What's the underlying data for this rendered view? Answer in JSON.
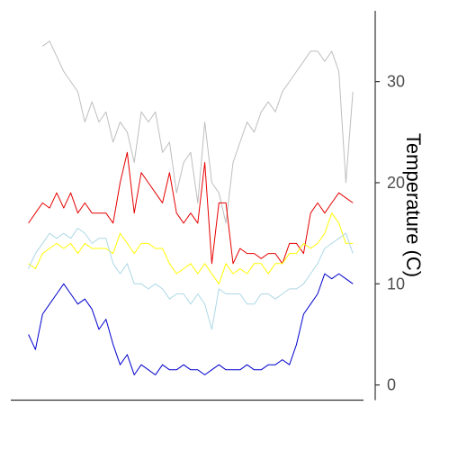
{
  "chart_data": {
    "type": "line",
    "title": "",
    "xlabel": "",
    "ylabel": "Temperature (C)",
    "ylim": [
      -1.5,
      37
    ],
    "xlim": [
      0,
      1
    ],
    "y_axis_position": "right",
    "yticks": [
      0,
      10,
      20,
      30
    ],
    "grid": false,
    "legend": "none",
    "series": [
      {
        "color": "#bebebe",
        "x": [
          0.09,
          0.11,
          0.13,
          0.15,
          0.17,
          0.19,
          0.21,
          0.23,
          0.25,
          0.27,
          0.29,
          0.31,
          0.33,
          0.35,
          0.37,
          0.39,
          0.41,
          0.43,
          0.45,
          0.47,
          0.49,
          0.51,
          0.53,
          0.55,
          0.57,
          0.59,
          0.61,
          0.63,
          0.65,
          0.67,
          0.69,
          0.71,
          0.73,
          0.75,
          0.77,
          0.79,
          0.81,
          0.83,
          0.85,
          0.87,
          0.89,
          0.91,
          0.93,
          0.95,
          0.97
        ],
        "values": [
          33.5,
          34,
          32.5,
          31,
          30,
          29,
          26,
          28,
          26,
          27,
          24,
          26,
          25,
          22,
          27,
          26,
          27,
          23,
          24,
          19,
          22,
          23,
          18,
          26,
          20,
          19,
          16,
          22,
          24,
          26,
          25,
          27,
          28,
          27,
          29,
          30,
          31,
          32,
          33,
          33,
          32,
          33,
          31,
          20,
          29
        ]
      },
      {
        "color": "#e60000",
        "x": [
          0.05,
          0.07,
          0.09,
          0.11,
          0.13,
          0.15,
          0.17,
          0.19,
          0.21,
          0.23,
          0.25,
          0.27,
          0.29,
          0.31,
          0.33,
          0.35,
          0.37,
          0.39,
          0.41,
          0.43,
          0.45,
          0.47,
          0.49,
          0.51,
          0.53,
          0.55,
          0.57,
          0.59,
          0.61,
          0.63,
          0.65,
          0.67,
          0.69,
          0.71,
          0.73,
          0.75,
          0.77,
          0.79,
          0.81,
          0.83,
          0.85,
          0.87,
          0.89,
          0.91,
          0.93,
          0.95,
          0.97
        ],
        "values": [
          16,
          17,
          18,
          17.5,
          19,
          17.5,
          19,
          17,
          18,
          17,
          17,
          17,
          16,
          20,
          23,
          17,
          21,
          20,
          19,
          18,
          21,
          17,
          16,
          17,
          16,
          22,
          12,
          18,
          18,
          12,
          13.5,
          13,
          13,
          12.5,
          13,
          13,
          12,
          14,
          14,
          13,
          17,
          18,
          17,
          18,
          19,
          18.5,
          18
        ]
      },
      {
        "color": "#ffff00",
        "x": [
          0.05,
          0.07,
          0.09,
          0.11,
          0.13,
          0.15,
          0.17,
          0.19,
          0.21,
          0.23,
          0.25,
          0.27,
          0.29,
          0.31,
          0.33,
          0.35,
          0.37,
          0.39,
          0.41,
          0.43,
          0.45,
          0.47,
          0.49,
          0.51,
          0.53,
          0.55,
          0.57,
          0.59,
          0.61,
          0.63,
          0.65,
          0.67,
          0.69,
          0.71,
          0.73,
          0.75,
          0.77,
          0.79,
          0.81,
          0.83,
          0.85,
          0.87,
          0.89,
          0.91,
          0.93,
          0.95,
          0.97
        ],
        "values": [
          12,
          11.5,
          13,
          13.5,
          14,
          13.5,
          14,
          13,
          14,
          13.5,
          13.5,
          13.5,
          13,
          15,
          14,
          13,
          14,
          14,
          13.5,
          13.5,
          12,
          11,
          11.5,
          12,
          11,
          12,
          11,
          10,
          12,
          11,
          11.5,
          11,
          12,
          12,
          11,
          12,
          12,
          13,
          13,
          14,
          13.5,
          14,
          15,
          17,
          16,
          14,
          14
        ]
      },
      {
        "color": "#add8e6",
        "x": [
          0.05,
          0.07,
          0.09,
          0.11,
          0.13,
          0.15,
          0.17,
          0.19,
          0.21,
          0.23,
          0.25,
          0.27,
          0.29,
          0.31,
          0.33,
          0.35,
          0.37,
          0.39,
          0.41,
          0.43,
          0.45,
          0.47,
          0.49,
          0.51,
          0.53,
          0.55,
          0.57,
          0.59,
          0.61,
          0.63,
          0.65,
          0.67,
          0.69,
          0.71,
          0.73,
          0.75,
          0.77,
          0.79,
          0.81,
          0.83,
          0.85,
          0.87,
          0.89,
          0.91,
          0.93,
          0.95,
          0.97
        ],
        "values": [
          11.5,
          13,
          14,
          15,
          14.5,
          15,
          14.5,
          15.5,
          15,
          14,
          14.5,
          14.5,
          12,
          11,
          12,
          10,
          10,
          9.5,
          10,
          9.5,
          8.5,
          9,
          9,
          8,
          9,
          8,
          5.5,
          9.5,
          9,
          9,
          9,
          8,
          8,
          9,
          9,
          8.5,
          9,
          9.5,
          9.5,
          10,
          11,
          12,
          13.5,
          14,
          14.5,
          15,
          13
        ]
      },
      {
        "color": "#0000cd",
        "x": [
          0.05,
          0.07,
          0.09,
          0.11,
          0.13,
          0.15,
          0.17,
          0.19,
          0.21,
          0.23,
          0.25,
          0.27,
          0.29,
          0.31,
          0.33,
          0.35,
          0.37,
          0.39,
          0.41,
          0.43,
          0.45,
          0.47,
          0.49,
          0.51,
          0.53,
          0.55,
          0.57,
          0.59,
          0.61,
          0.63,
          0.65,
          0.67,
          0.69,
          0.71,
          0.73,
          0.75,
          0.77,
          0.79,
          0.81,
          0.83,
          0.85,
          0.87,
          0.89,
          0.91,
          0.93,
          0.95,
          0.97
        ],
        "values": [
          5,
          3.5,
          7,
          8,
          9,
          10,
          9,
          8,
          8.5,
          7.5,
          5.5,
          6.5,
          4,
          2,
          3,
          1,
          2,
          1.5,
          1,
          2,
          1.5,
          1.5,
          2,
          1.5,
          1.5,
          1,
          1.5,
          2,
          1.5,
          1.5,
          1.5,
          2,
          1.5,
          1.5,
          2,
          2,
          2.5,
          2,
          4,
          7,
          8,
          9,
          11,
          10.5,
          11,
          10.5,
          10
        ]
      }
    ]
  }
}
